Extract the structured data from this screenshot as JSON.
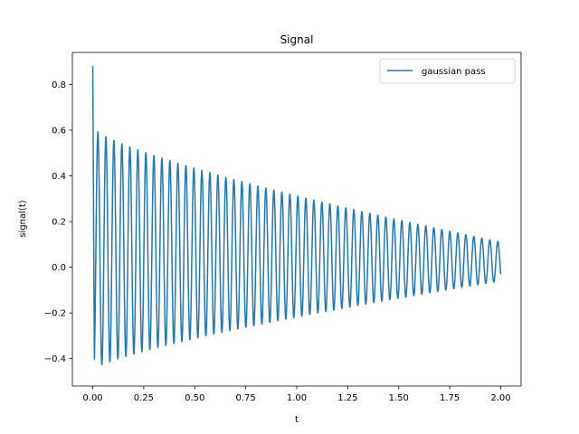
{
  "chart_data": {
    "type": "line",
    "title": "Signal",
    "xlabel": "t",
    "ylabel": "signal(t)",
    "xlim": [
      -0.1,
      2.1
    ],
    "ylim": [
      -0.52,
      0.94
    ],
    "xticks": [
      "0.00",
      "0.25",
      "0.50",
      "0.75",
      "1.00",
      "1.25",
      "1.50",
      "1.75",
      "2.00"
    ],
    "xtick_values": [
      0,
      0.25,
      0.5,
      0.75,
      1.0,
      1.25,
      1.5,
      1.75,
      2.0
    ],
    "yticks": [
      "−0.4",
      "−0.2",
      "0.0",
      "0.2",
      "0.4",
      "0.6",
      "0.8"
    ],
    "ytick_values": [
      -0.4,
      -0.2,
      0.0,
      0.2,
      0.4,
      0.6,
      0.8
    ],
    "grid": false,
    "legend_position": "top-right",
    "series": [
      {
        "name": "gaussian pass",
        "color": "#1f77b4",
        "model": {
          "t_start": 0.0,
          "t_end": 2.0,
          "samples": 2000,
          "initial_value": 0.88,
          "frequency_hz": 25.5,
          "envelope_peak_start": 0.61,
          "envelope_peak_end": 0.11,
          "envelope_trough_start": -0.45,
          "envelope_trough_end": -0.06
        }
      }
    ]
  }
}
